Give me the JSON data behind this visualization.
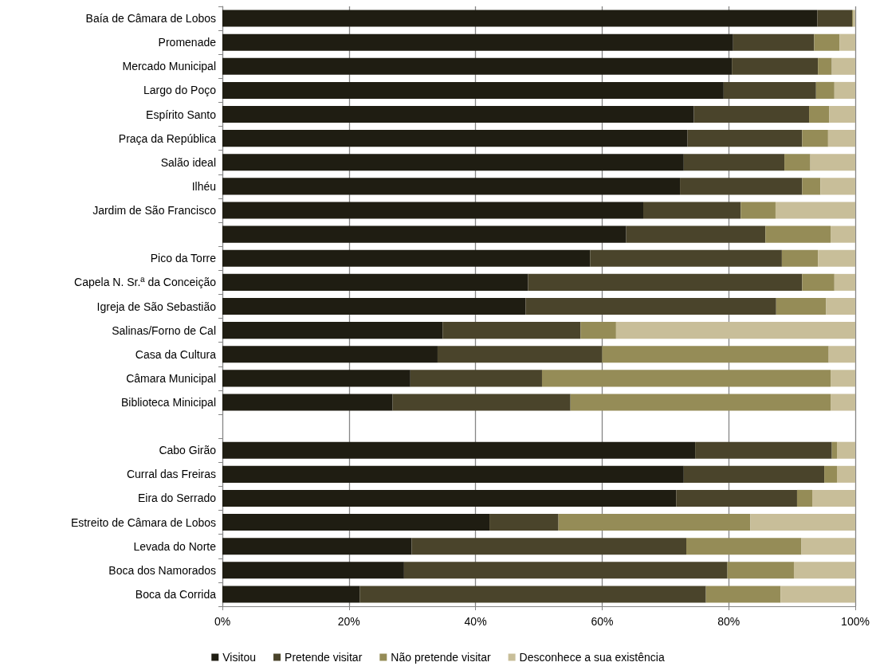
{
  "chart_data": {
    "type": "bar",
    "orientation": "horizontal",
    "stacked": true,
    "grid": "x",
    "legend": "bottom",
    "categories": [
      "Baía de Câmara de Lobos",
      "Promenade",
      "Mercado Municipal",
      "Largo do Poço",
      "Espírito Santo",
      "Praça da República",
      "Salão ideal",
      "Ilhéu",
      "Jardim de São Francisco",
      null,
      "Pico da Torre",
      "Capela N. Sr.ª da Conceição",
      "Igreja de São Sebastião",
      "Salinas/Forno de Cal",
      "Casa da Cultura",
      "Câmara Municipal",
      "Biblioteca Minicipal",
      null,
      "Cabo Girão",
      "Curral das Freiras",
      "Eira do Serrado",
      "Estreito de Câmara de Lobos",
      "Levada do Norte",
      "Boca dos Namorados",
      "Boca da Corrida"
    ],
    "xlim": [
      0,
      100
    ],
    "xticks": [
      {
        "value": 0,
        "label": "0%"
      },
      {
        "value": 20,
        "label": "20%"
      },
      {
        "value": 40,
        "label": "40%"
      },
      {
        "value": 60,
        "label": "60%"
      },
      {
        "value": 80,
        "label": "80%"
      },
      {
        "value": 100,
        "label": "100%"
      }
    ],
    "series": [
      {
        "name": "Visitou",
        "color": "#1f1d12",
        "values": [
          94.0,
          80.7,
          80.5,
          79.2,
          74.5,
          73.5,
          72.9,
          72.3,
          66.5,
          63.8,
          58.1,
          48.3,
          47.9,
          34.8,
          34.0,
          29.7,
          26.9,
          null,
          74.7,
          72.9,
          71.7,
          42.2,
          29.9,
          28.7,
          21.7
        ]
      },
      {
        "name": "Pretende visitar",
        "color": "#4a442b",
        "values": [
          5.5,
          12.8,
          13.6,
          14.6,
          18.2,
          18.1,
          15.9,
          19.3,
          15.4,
          22.0,
          30.3,
          43.3,
          39.6,
          21.8,
          26.0,
          20.8,
          28.1,
          null,
          21.6,
          22.2,
          19.1,
          10.9,
          43.4,
          51.1,
          54.7
        ]
      },
      {
        "name": "Não pretende visitar",
        "color": "#958c57",
        "values": [
          0.2,
          4.0,
          2.2,
          2.9,
          3.2,
          4.1,
          4.1,
          2.9,
          5.5,
          10.3,
          5.7,
          5.1,
          7.9,
          5.6,
          35.8,
          45.6,
          41.1,
          null,
          0.8,
          2.0,
          2.4,
          30.3,
          18.2,
          10.5,
          11.8
        ]
      },
      {
        "name": "Desconhece a sua existência",
        "color": "#c8be99",
        "values": [
          0.3,
          2.5,
          3.7,
          3.3,
          4.1,
          4.3,
          7.1,
          5.5,
          12.6,
          3.9,
          5.9,
          3.3,
          4.6,
          37.8,
          4.2,
          3.9,
          3.9,
          null,
          2.9,
          2.9,
          6.8,
          16.6,
          8.5,
          9.7,
          11.8
        ]
      }
    ]
  }
}
